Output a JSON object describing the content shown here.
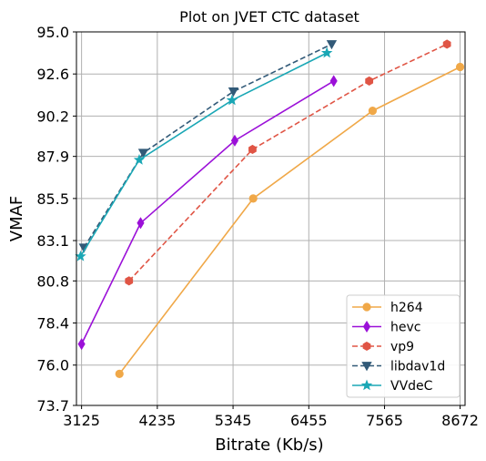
{
  "chart_data": {
    "type": "line",
    "title": "Plot on JVET CTC dataset",
    "xlabel": "Bitrate (Kb/s)",
    "ylabel": "VMAF",
    "xlim": [
      3050,
      8745
    ],
    "ylim": [
      73.7,
      95.0
    ],
    "xticks": [
      3125,
      4235,
      5345,
      6455,
      7565,
      8672
    ],
    "xtick_labels": [
      "3125",
      "4235",
      "5345",
      "6455",
      "7565",
      "8672"
    ],
    "yticks": [
      73.7,
      76.0,
      78.4,
      80.8,
      83.1,
      85.5,
      87.9,
      90.2,
      92.6,
      95.0
    ],
    "ytick_labels": [
      "73.7",
      "76.0",
      "78.4",
      "80.8",
      "83.1",
      "85.5",
      "87.9",
      "90.2",
      "92.6",
      "95.0"
    ],
    "grid": true,
    "legend_position": "lower-right",
    "series": [
      {
        "name": "h264",
        "color": "#f0a848",
        "dash": "solid",
        "marker": "circle",
        "points": [
          [
            3680,
            75.5
          ],
          [
            5640,
            85.5
          ],
          [
            7390,
            90.5
          ],
          [
            8672,
            93.0
          ]
        ]
      },
      {
        "name": "hevc",
        "color": "#9b10d8",
        "dash": "solid",
        "marker": "diamond",
        "points": [
          [
            3125,
            77.2
          ],
          [
            3990,
            84.1
          ],
          [
            5370,
            88.8
          ],
          [
            6820,
            92.2
          ]
        ]
      },
      {
        "name": "vp9",
        "color": "#e05545",
        "dash": "dashed",
        "marker": "hexagon",
        "points": [
          [
            3820,
            80.8
          ],
          [
            5630,
            88.3
          ],
          [
            7340,
            92.2
          ],
          [
            8480,
            94.3
          ]
        ]
      },
      {
        "name": "libdav1d",
        "color": "#325a78",
        "dash": "dashed",
        "marker": "triangle-down",
        "points": [
          [
            3160,
            82.7
          ],
          [
            4030,
            88.1
          ],
          [
            5350,
            91.6
          ],
          [
            6790,
            94.3
          ]
        ]
      },
      {
        "name": "VVdeC",
        "color": "#1aa7b5",
        "dash": "solid",
        "marker": "star",
        "points": [
          [
            3110,
            82.2
          ],
          [
            3970,
            87.7
          ],
          [
            5330,
            91.1
          ],
          [
            6720,
            93.8
          ]
        ]
      }
    ]
  }
}
